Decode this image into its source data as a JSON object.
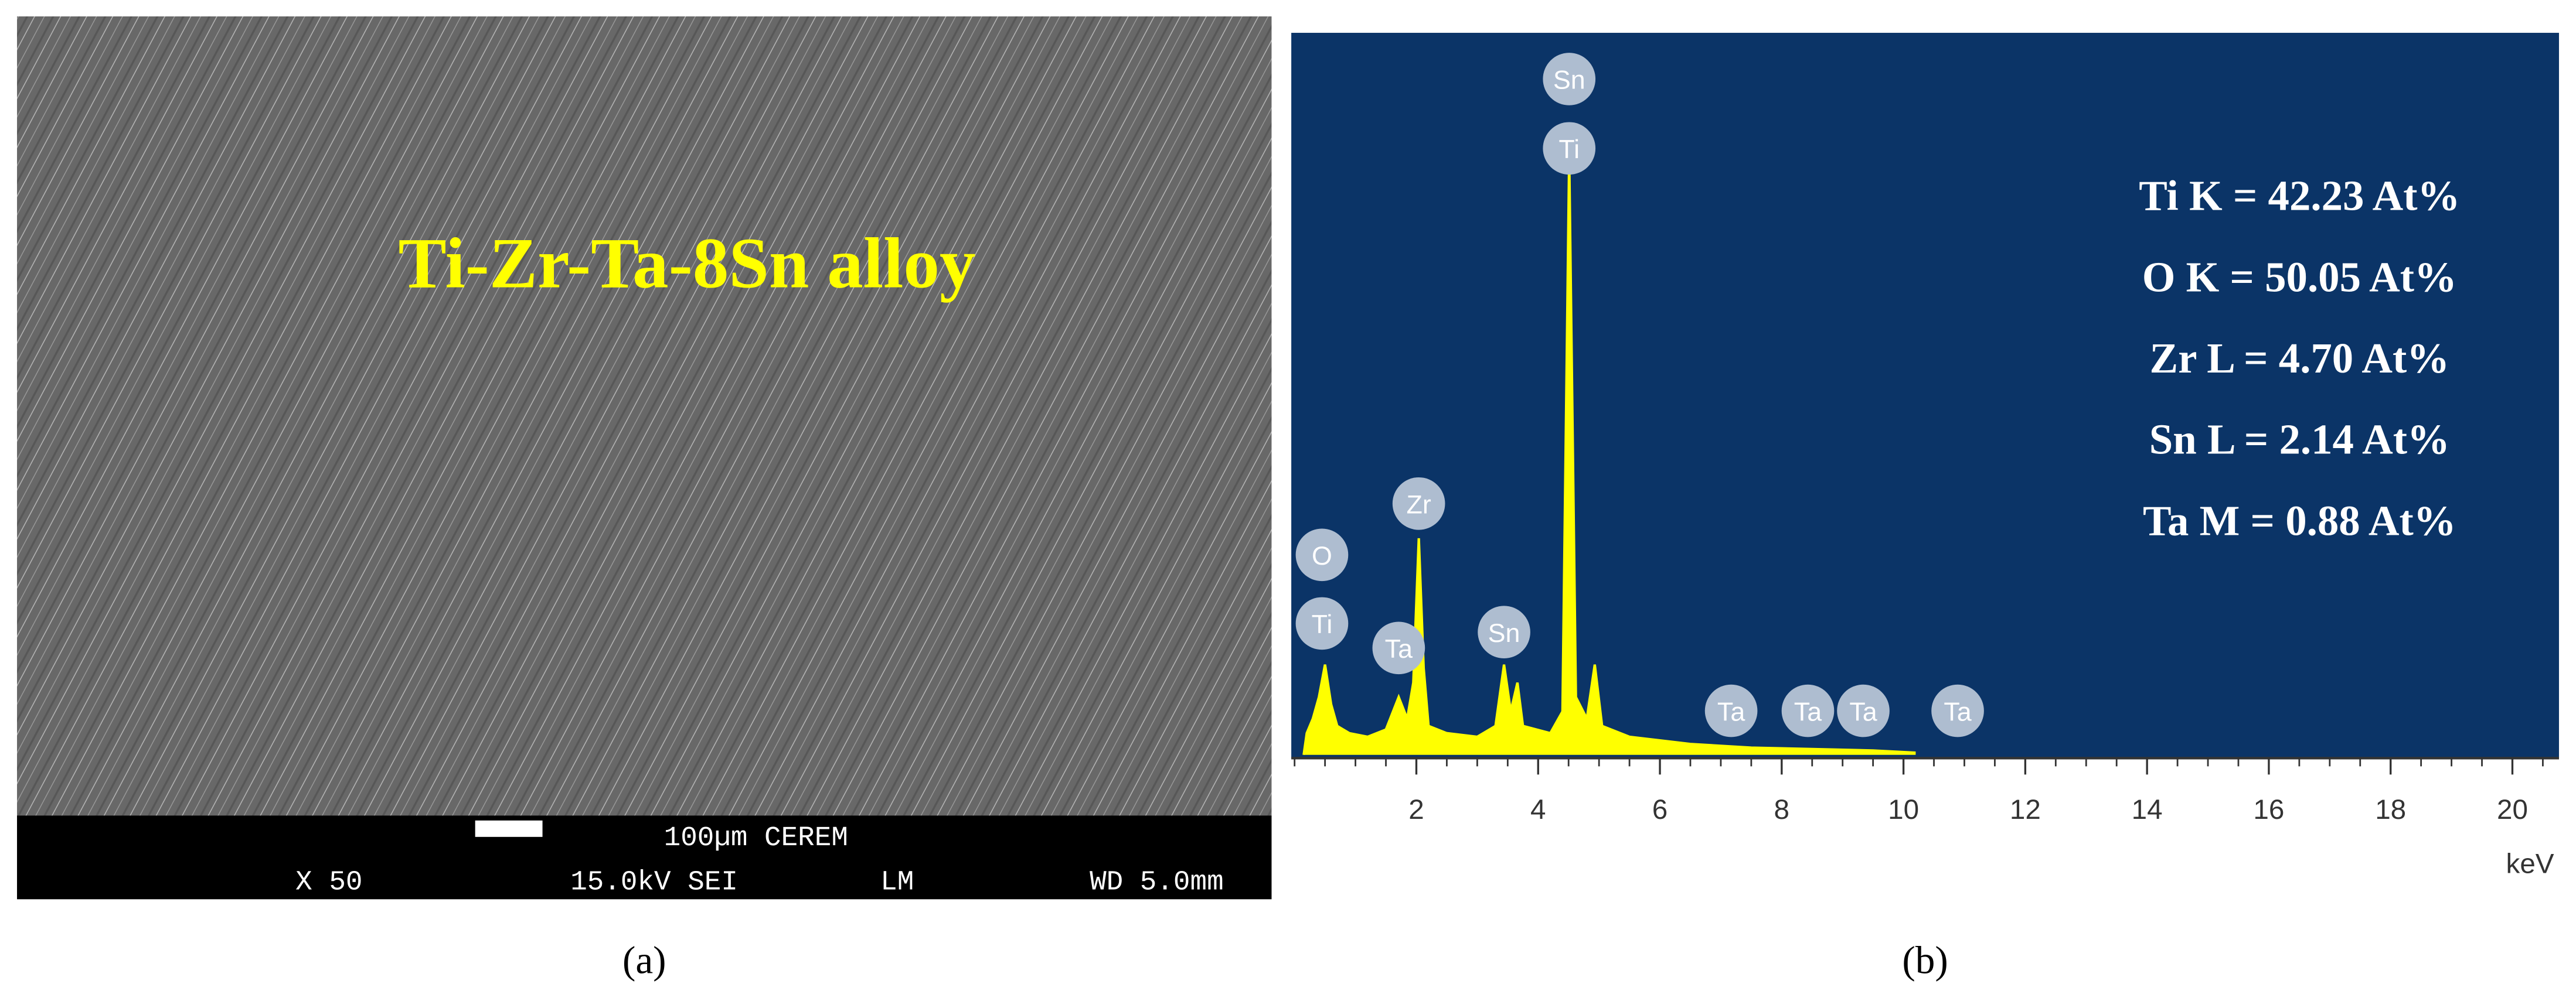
{
  "panel_a": {
    "overlay_title": "Ti-Zr-Ta-8Sn alloy",
    "scale_label": "100µm CEREM",
    "magnification": "X 50",
    "beam": "15.0kV SEI",
    "mode": "LM",
    "working_distance": "WD 5.0mm",
    "caption": "(a)"
  },
  "chart_data": {
    "type": "area",
    "caption": "(b)",
    "x_label": "keV",
    "color": "#ffff00",
    "background": "#0b3467",
    "x": [
      0.15,
      0.2,
      0.3,
      0.4,
      0.5,
      0.6,
      0.7,
      0.9,
      1.2,
      1.5,
      1.71,
      1.85,
      1.95,
      2.04,
      2.12,
      2.2,
      2.5,
      3.0,
      3.3,
      3.44,
      3.55,
      3.66,
      3.75,
      4.2,
      4.4,
      4.51,
      4.62,
      4.8,
      4.93,
      5.05,
      5.5,
      6.5,
      7.5,
      8.5,
      9.5,
      10.2
    ],
    "values": [
      0,
      3,
      5,
      8,
      12.5,
      7,
      4,
      3,
      2.5,
      3.5,
      8,
      5,
      10,
      30,
      12,
      4,
      3,
      2.5,
      4,
      12.5,
      6,
      10,
      4,
      3,
      6,
      83,
      8,
      5,
      12.5,
      4,
      2.5,
      1.5,
      1,
      0.8,
      0.6,
      0.3
    ],
    "xlim": [
      0,
      20.9
    ],
    "ylim": [
      0,
      100
    ],
    "xticks": [
      2,
      4,
      6,
      8,
      10,
      12,
      14,
      16,
      18,
      20
    ],
    "minor_tick_step": 0.5,
    "peak_labels": [
      {
        "text": "O",
        "x": 0.45,
        "y": 27.7
      },
      {
        "text": "Ti",
        "x": 0.45,
        "y": 18.2
      },
      {
        "text": "Ta",
        "x": 1.71,
        "y": 14.8
      },
      {
        "text": "Zr",
        "x": 2.04,
        "y": 34.8
      },
      {
        "text": "Sn",
        "x": 3.44,
        "y": 17
      },
      {
        "text": "Sn",
        "x": 4.51,
        "y": 93.6
      },
      {
        "text": "Ti",
        "x": 4.51,
        "y": 84
      },
      {
        "text": "Ta",
        "x": 7.17,
        "y": 6.1
      },
      {
        "text": "Ta",
        "x": 8.43,
        "y": 6.1
      },
      {
        "text": "Ta",
        "x": 9.34,
        "y": 6.1
      },
      {
        "text": "Ta",
        "x": 10.89,
        "y": 6.1
      }
    ],
    "annotations": [
      "Ti K = 42.23 At%",
      "O K = 50.05 At%",
      "Zr L = 4.70 At%",
      "Sn L = 2.14 At%",
      "Ta M = 0.88 At%"
    ]
  }
}
